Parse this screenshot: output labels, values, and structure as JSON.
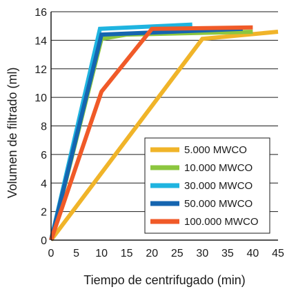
{
  "chart_data": {
    "type": "line",
    "title": "",
    "xlabel": "Tiempo de centrifugado (min)",
    "ylabel": "Volumen de filtrado (ml)",
    "xlim": [
      0,
      45
    ],
    "ylim": [
      0,
      16
    ],
    "xticks": [
      0,
      5,
      10,
      15,
      20,
      25,
      30,
      35,
      40,
      45
    ],
    "yticks": [
      0,
      2,
      4,
      6,
      8,
      10,
      12,
      14,
      16
    ],
    "grid": "horizontal",
    "legend_position": "bottom-right",
    "series": [
      {
        "name": "5.000 MWCO",
        "color": "#f0b429",
        "points": [
          [
            0,
            0
          ],
          [
            30,
            14.1
          ],
          [
            45,
            14.6
          ]
        ]
      },
      {
        "name": "10.000 MWCO",
        "color": "#8cc63f",
        "points": [
          [
            0,
            0
          ],
          [
            10,
            14.1
          ],
          [
            15,
            14.4
          ],
          [
            40,
            14.6
          ]
        ]
      },
      {
        "name": "30.000 MWCO",
        "color": "#1fb4e0",
        "points": [
          [
            0,
            0
          ],
          [
            9.7,
            14.8
          ],
          [
            28,
            15.1
          ]
        ]
      },
      {
        "name": "50.000 MWCO",
        "color": "#1565b0",
        "points": [
          [
            0,
            0
          ],
          [
            10,
            14.4
          ],
          [
            38,
            14.8
          ]
        ]
      },
      {
        "name": "100.000 MWCO",
        "color": "#f05a28",
        "points": [
          [
            0,
            0
          ],
          [
            10,
            10.4
          ],
          [
            20,
            14.8
          ],
          [
            40,
            14.9
          ]
        ]
      }
    ]
  }
}
